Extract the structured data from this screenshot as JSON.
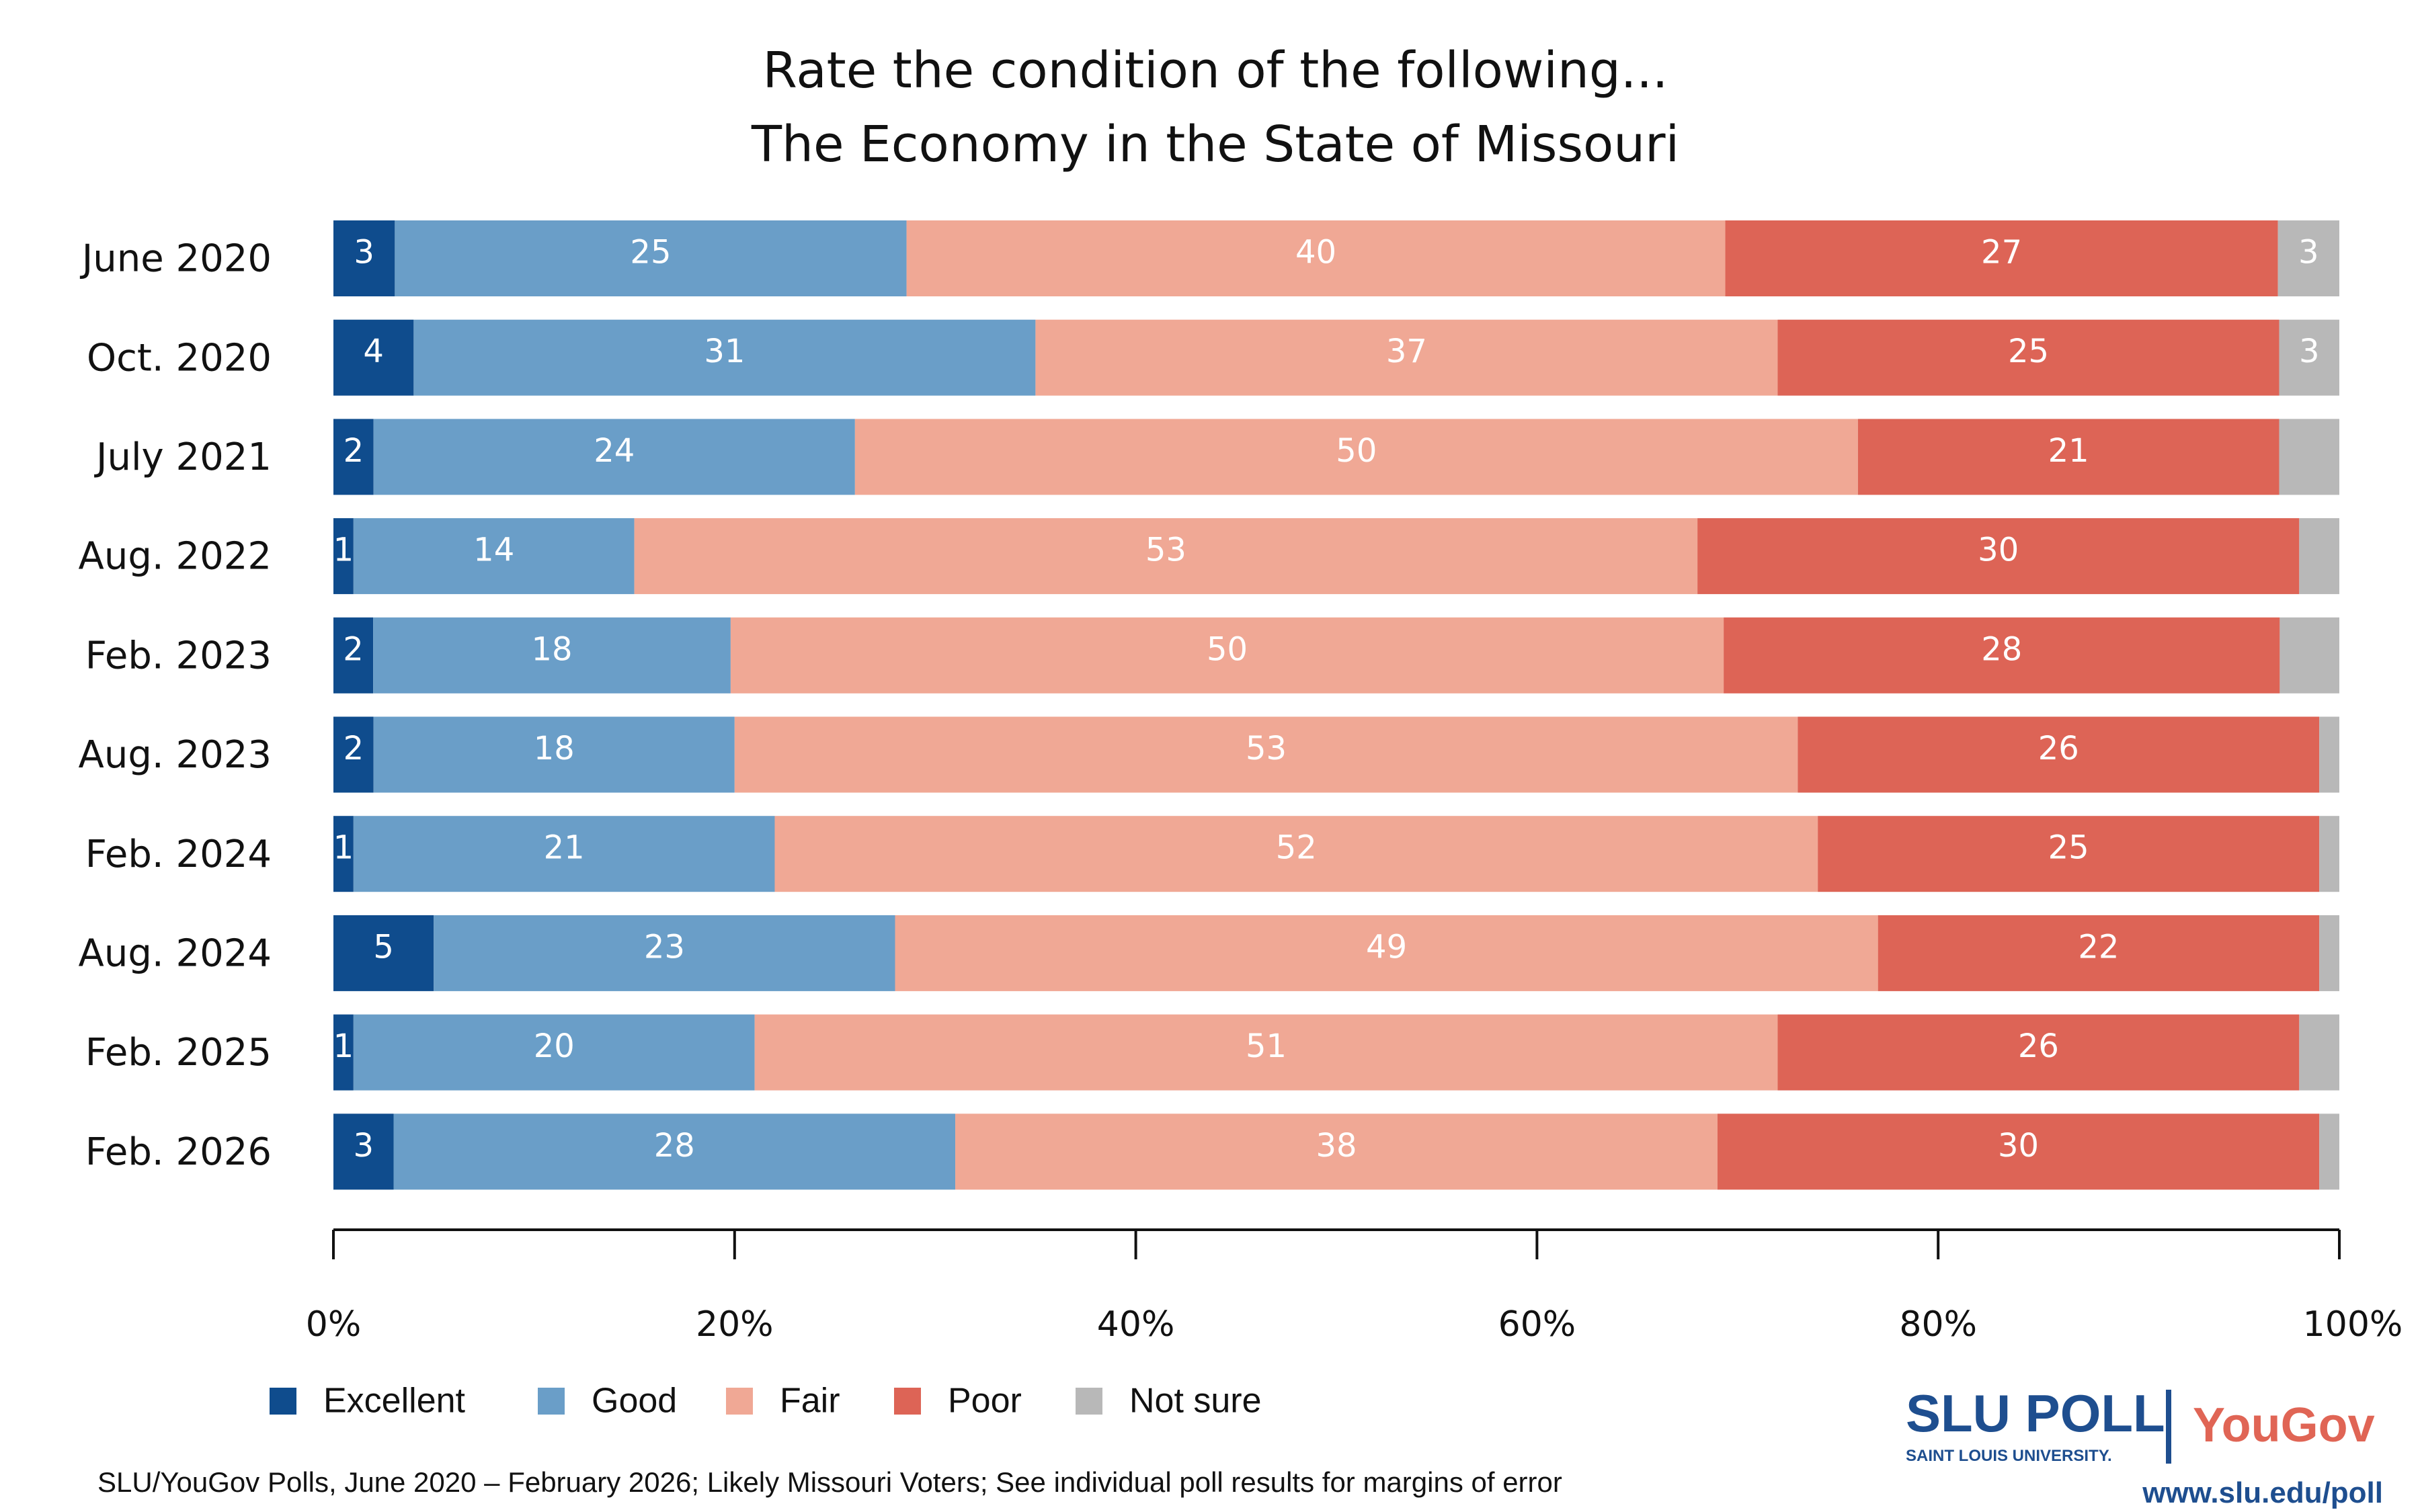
{
  "chart_data": {
    "type": "bar",
    "orientation": "horizontal",
    "stacked": true,
    "title": [
      "Rate the condition of the following...",
      "The Economy in the State of Missouri"
    ],
    "categories": [
      "June 2020",
      "Oct. 2020",
      "July 2021",
      "Aug. 2022",
      "Feb. 2023",
      "Aug. 2023",
      "Feb. 2024",
      "Aug. 2024",
      "Feb. 2025",
      "Feb. 2026"
    ],
    "series": [
      {
        "name": "Excellent",
        "color": "#0f4c8d",
        "values": [
          3,
          4,
          2,
          1,
          2,
          2,
          1,
          5,
          1,
          3
        ]
      },
      {
        "name": "Good",
        "color": "#6a9ec8",
        "values": [
          25,
          31,
          24,
          14,
          18,
          18,
          21,
          23,
          20,
          28
        ]
      },
      {
        "name": "Fair",
        "color": "#f0a895",
        "values": [
          40,
          37,
          50,
          53,
          50,
          53,
          52,
          49,
          51,
          38
        ]
      },
      {
        "name": "Poor",
        "color": "#dd6456",
        "values": [
          27,
          25,
          21,
          30,
          28,
          26,
          25,
          22,
          26,
          30
        ]
      },
      {
        "name": "Not sure",
        "color": "#b8b8b8",
        "values": [
          3,
          3,
          3,
          2,
          3,
          1,
          1,
          1,
          2,
          1
        ]
      }
    ],
    "not_sure_label_shown": [
      true,
      true,
      false,
      false,
      false,
      false,
      false,
      false,
      false,
      false
    ],
    "xlim": [
      0,
      100
    ],
    "xticks": [
      "0%",
      "20%",
      "40%",
      "60%",
      "80%",
      "100%"
    ],
    "grid": false,
    "legend_placement": "bottom-left"
  },
  "footnote": "SLU/YouGov Polls, June 2020 – February 2026; Likely Missouri Voters; See individual poll results for margins of error",
  "logo": {
    "slu": "SLU POLL",
    "slu_sub": "SAINT LOUIS UNIVERSITY.",
    "yougov": "YouGov",
    "url": "www.slu.edu/poll"
  }
}
